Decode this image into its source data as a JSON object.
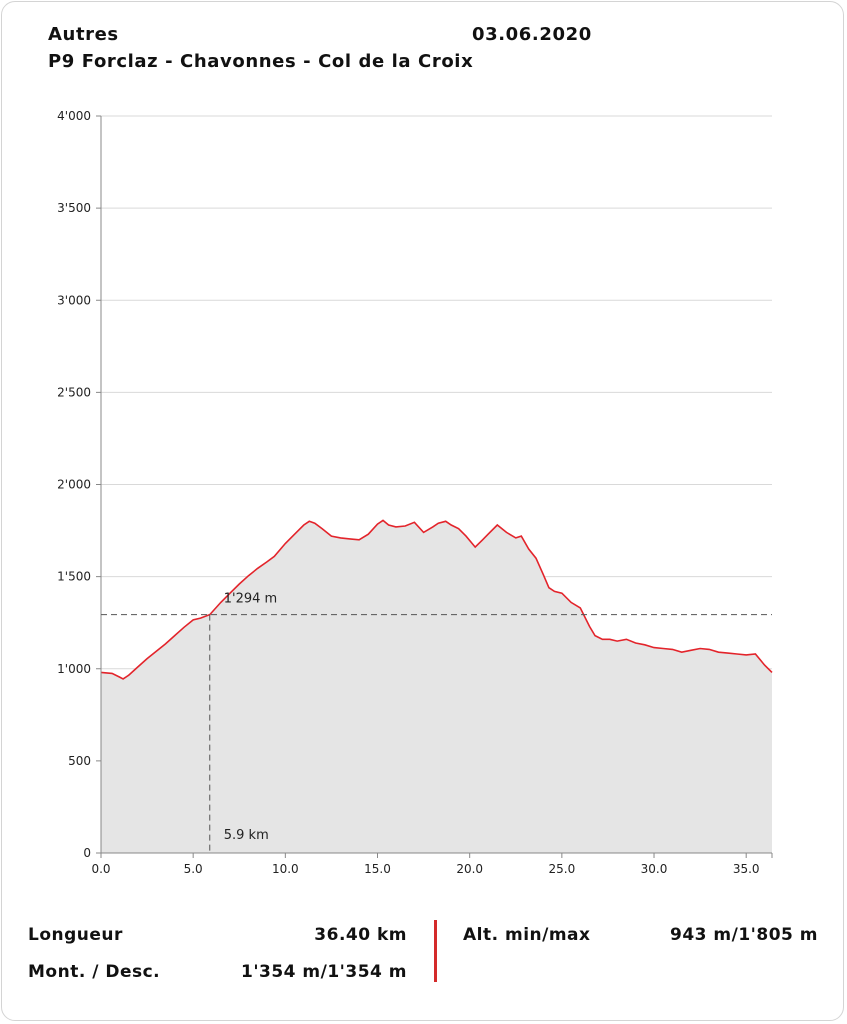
{
  "header": {
    "category": "Autres",
    "date": "03.06.2020",
    "route": "P9 Forclaz - Chavonnes - Col de la Croix"
  },
  "chart_data": {
    "type": "area",
    "xlabel": "",
    "ylabel": "",
    "xlim": [
      0,
      36.4
    ],
    "ylim": [
      0,
      4000
    ],
    "x_ticks": [
      0,
      5,
      10,
      15,
      20,
      25,
      30,
      35
    ],
    "x_tick_labels": [
      "0.0",
      "5.0",
      "10.0",
      "15.0",
      "20.0",
      "25.0",
      "30.0",
      "35.0"
    ],
    "y_ticks": [
      0,
      500,
      1000,
      1500,
      2000,
      2500,
      3000,
      3500,
      4000
    ],
    "y_tick_labels": [
      "0",
      "500",
      "1'000",
      "1'500",
      "2'000",
      "2'500",
      "3'000",
      "3'500",
      "4'000"
    ],
    "grid": "horizontal",
    "series": [
      {
        "x": [
          0,
          0.6,
          1.0,
          1.2,
          1.5,
          2.0,
          2.5,
          3.0,
          3.5,
          4.0,
          4.5,
          5.0,
          5.4,
          5.9,
          6.5,
          7.0,
          7.5,
          8.0,
          8.5,
          9.0,
          9.4,
          10.0,
          10.5,
          11.0,
          11.3,
          11.6,
          12.0,
          12.5,
          13.0,
          13.5,
          14.0,
          14.5,
          15.0,
          15.3,
          15.6,
          16.0,
          16.5,
          17.0,
          17.5,
          18.0,
          18.3,
          18.7,
          19.0,
          19.4,
          19.8,
          20.3,
          20.7,
          21.0,
          21.5,
          22.0,
          22.5,
          22.8,
          23.2,
          23.6,
          24.0,
          24.3,
          24.6,
          25.0,
          25.5,
          26.0,
          26.5,
          26.8,
          27.2,
          27.6,
          28.0,
          28.5,
          29.0,
          29.5,
          30.0,
          30.5,
          31.0,
          31.5,
          32.0,
          32.5,
          33.0,
          33.5,
          34.0,
          34.5,
          35.0,
          35.5,
          36.0,
          36.4
        ],
        "y": [
          980,
          975,
          955,
          945,
          965,
          1010,
          1055,
          1095,
          1135,
          1180,
          1225,
          1265,
          1275,
          1294,
          1360,
          1410,
          1460,
          1505,
          1545,
          1580,
          1610,
          1680,
          1730,
          1780,
          1800,
          1790,
          1760,
          1720,
          1710,
          1705,
          1700,
          1730,
          1785,
          1805,
          1780,
          1770,
          1775,
          1795,
          1740,
          1770,
          1790,
          1800,
          1780,
          1760,
          1720,
          1660,
          1700,
          1730,
          1780,
          1740,
          1710,
          1720,
          1650,
          1600,
          1510,
          1440,
          1420,
          1410,
          1360,
          1330,
          1230,
          1180,
          1160,
          1160,
          1150,
          1160,
          1140,
          1130,
          1115,
          1110,
          1105,
          1090,
          1100,
          1110,
          1105,
          1090,
          1085,
          1080,
          1075,
          1080,
          1020,
          980
        ]
      }
    ],
    "colors": {
      "line": "#e3242b",
      "fill": "#e5e5e5",
      "marker": "#555555",
      "grid": "#d9d9d9"
    },
    "marker": {
      "x": 5.9,
      "y": 1294,
      "x_label": "5.9 km",
      "y_label": "1'294 m"
    }
  },
  "stats": {
    "length_label": "Longueur",
    "length_value": "36.40 km",
    "ascent_label": "Mont. / Desc.",
    "ascent_value": "1'354 m/1'354 m",
    "alt_label": "Alt. min/max",
    "alt_value": "943 m/1'805 m"
  }
}
